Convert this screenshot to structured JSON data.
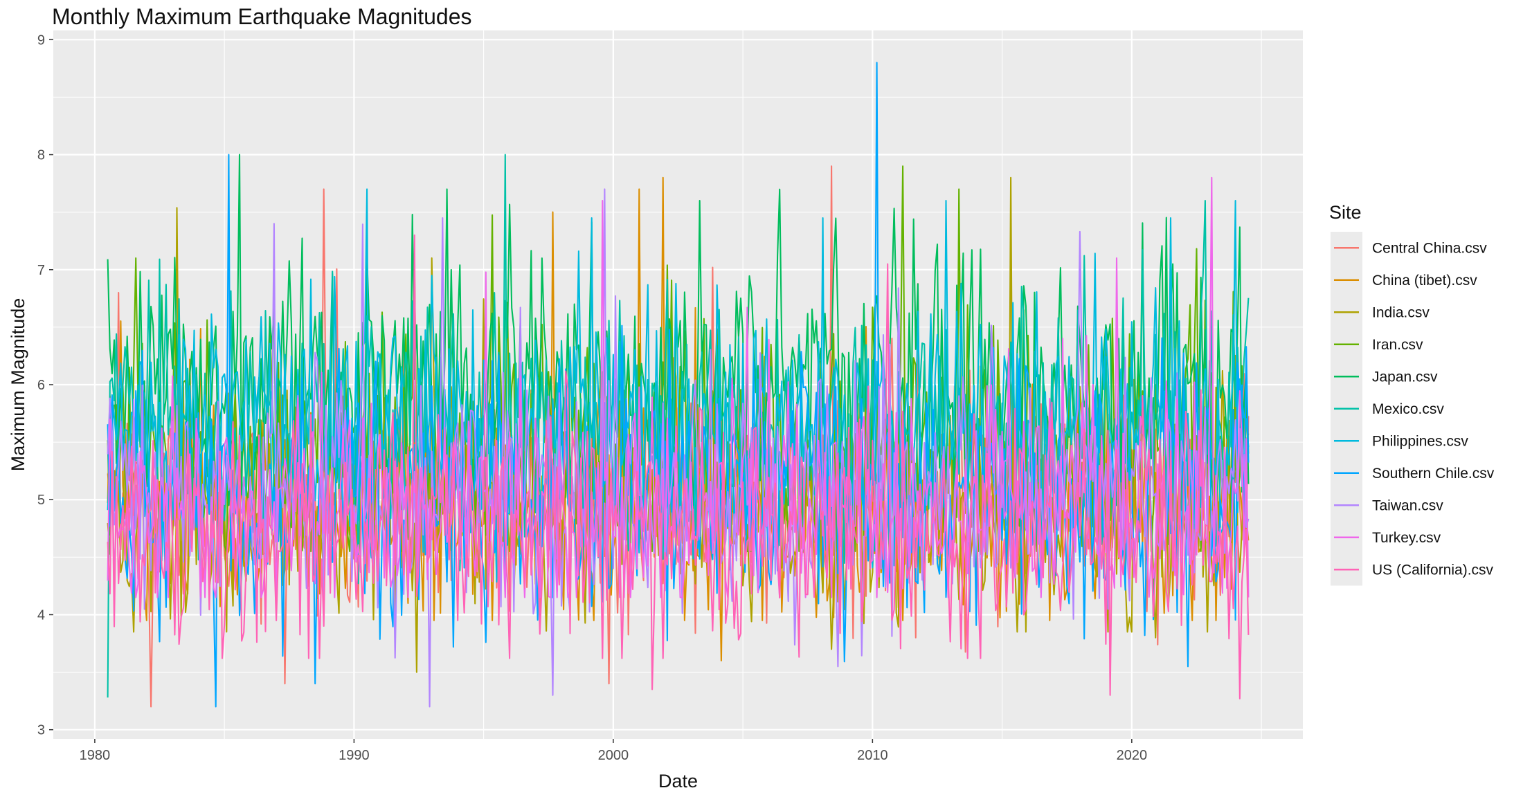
{
  "chart_data": {
    "type": "line",
    "title": "Monthly Maximum Earthquake Magnitudes",
    "xlabel": "Date",
    "ylabel": "Maximum Magnitude",
    "x_range": [
      1980.5,
      2024.5
    ],
    "xlim": [
      1978.4,
      2026.6
    ],
    "ylim": [
      2.92,
      9.08
    ],
    "x_ticks": [
      1980,
      1990,
      2000,
      2010,
      2020
    ],
    "y_ticks": [
      3,
      4,
      5,
      6,
      7,
      8,
      9
    ],
    "grid": true,
    "legend": {
      "title": "Site",
      "position": "right"
    },
    "series": [
      {
        "name": "Central China.csv",
        "color": "#F8766D",
        "stats": {
          "mean": 5.0,
          "sd": 0.45,
          "min": 3.2,
          "max": 7.9
        },
        "peaks": [
          {
            "x": 1988.8,
            "y": 7.7
          },
          {
            "x": 2008.4,
            "y": 7.9
          },
          {
            "x": 1982.2,
            "y": 3.2
          },
          {
            "x": 1999.8,
            "y": 3.4
          },
          {
            "x": 1987.3,
            "y": 3.4
          },
          {
            "x": 1980.9,
            "y": 6.8
          }
        ]
      },
      {
        "name": "China (tibet).csv",
        "color": "#DB8E00",
        "stats": {
          "mean": 4.9,
          "sd": 0.5,
          "min": 3.6,
          "max": 7.8
        },
        "peaks": [
          {
            "x": 2001.9,
            "y": 7.8
          },
          {
            "x": 1997.7,
            "y": 7.5
          },
          {
            "x": 2001.0,
            "y": 7.7
          },
          {
            "x": 2004.2,
            "y": 3.6
          }
        ]
      },
      {
        "name": "India.csv",
        "color": "#AEA200",
        "stats": {
          "mean": 4.9,
          "sd": 0.5,
          "min": 3.5,
          "max": 7.8
        },
        "peaks": [
          {
            "x": 2015.3,
            "y": 7.8
          },
          {
            "x": 1992.4,
            "y": 3.5
          },
          {
            "x": 2020.9,
            "y": 3.8
          },
          {
            "x": 2008.4,
            "y": 3.7
          }
        ]
      },
      {
        "name": "Iran.csv",
        "color": "#64B200",
        "stats": {
          "mean": 5.4,
          "sd": 0.55,
          "min": 4.2,
          "max": 7.9
        },
        "peaks": [
          {
            "x": 2011.2,
            "y": 7.9
          },
          {
            "x": 2013.3,
            "y": 7.7
          },
          {
            "x": 1981.6,
            "y": 7.1
          }
        ]
      },
      {
        "name": "Japan.csv",
        "color": "#00BD5C",
        "stats": {
          "mean": 6.0,
          "sd": 0.55,
          "min": 4.6,
          "max": 8.0
        },
        "peaks": [
          {
            "x": 1985.6,
            "y": 8.0
          },
          {
            "x": 1993.6,
            "y": 7.7
          },
          {
            "x": 2003.3,
            "y": 7.6
          }
        ]
      },
      {
        "name": "Mexico.csv",
        "color": "#00C1A7",
        "stats": {
          "mean": 5.6,
          "sd": 0.5,
          "min": 3.28,
          "max": 8.0
        },
        "peaks": [
          {
            "x": 1995.8,
            "y": 8.0
          },
          {
            "x": 1980.5,
            "y": 3.28
          },
          {
            "x": 2022.8,
            "y": 7.6
          }
        ]
      },
      {
        "name": "Philippines.csv",
        "color": "#00BADE",
        "stats": {
          "mean": 5.6,
          "sd": 0.55,
          "min": 3.9,
          "max": 7.7
        },
        "peaks": [
          {
            "x": 1990.5,
            "y": 7.7
          },
          {
            "x": 2012.8,
            "y": 7.6
          },
          {
            "x": 2024.0,
            "y": 7.6
          }
        ]
      },
      {
        "name": "Southern Chile.csv",
        "color": "#00A6FF",
        "stats": {
          "mean": 5.0,
          "sd": 0.55,
          "min": 3.2,
          "max": 8.8
        },
        "peaks": [
          {
            "x": 2010.2,
            "y": 8.8
          },
          {
            "x": 1985.2,
            "y": 8.0
          },
          {
            "x": 1984.7,
            "y": 3.2
          },
          {
            "x": 1988.5,
            "y": 3.4
          }
        ]
      },
      {
        "name": "Taiwan.csv",
        "color": "#B385FF",
        "stats": {
          "mean": 5.1,
          "sd": 0.5,
          "min": 3.2,
          "max": 7.7
        },
        "peaks": [
          {
            "x": 1999.7,
            "y": 7.7
          },
          {
            "x": 1992.9,
            "y": 3.2
          },
          {
            "x": 1997.7,
            "y": 3.3
          },
          {
            "x": 1986.9,
            "y": 7.4
          }
        ]
      },
      {
        "name": "Turkey.csv",
        "color": "#EF67EB",
        "stats": {
          "mean": 4.9,
          "sd": 0.5,
          "min": 3.8,
          "max": 7.8
        },
        "peaks": [
          {
            "x": 2023.1,
            "y": 7.8
          },
          {
            "x": 1999.6,
            "y": 7.6
          },
          {
            "x": 2019.4,
            "y": 7.1
          }
        ]
      },
      {
        "name": "US (California).csv",
        "color": "#FF63B6",
        "stats": {
          "mean": 4.65,
          "sd": 0.5,
          "min": 3.27,
          "max": 7.3
        },
        "peaks": [
          {
            "x": 1992.3,
            "y": 7.3
          },
          {
            "x": 2019.2,
            "y": 3.3
          },
          {
            "x": 2024.2,
            "y": 3.27
          },
          {
            "x": 2001.5,
            "y": 3.35
          }
        ]
      }
    ]
  }
}
